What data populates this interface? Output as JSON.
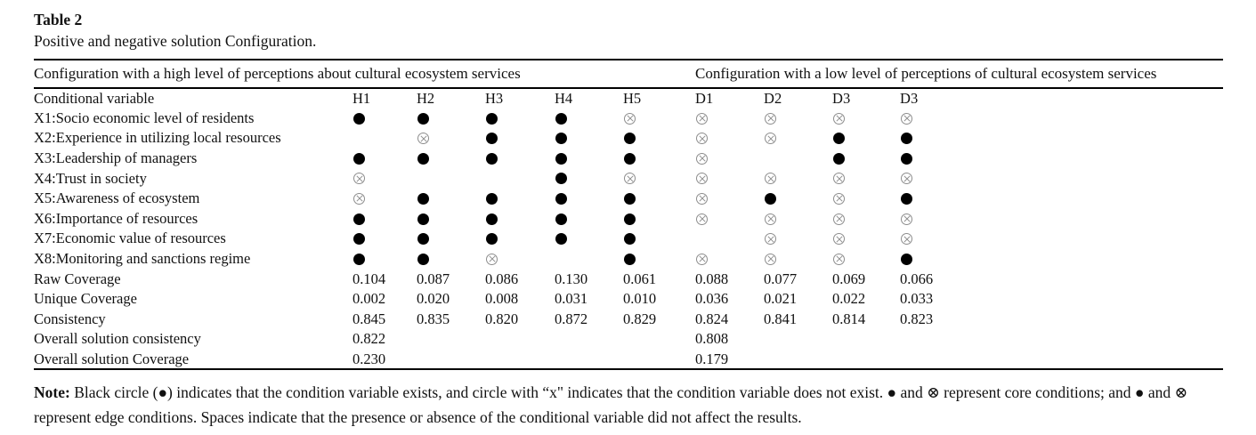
{
  "caption": {
    "label": "Table 2",
    "text": "Positive and negative solution Configuration."
  },
  "group_headers": {
    "high": "Configuration with a high level of perceptions about cultural ecosystem services",
    "low": "Configuration with a low level of perceptions of cultural ecosystem services"
  },
  "columns": [
    "Conditional variable",
    "H1",
    "H2",
    "H3",
    "H4",
    "H5",
    "D1",
    "D2",
    "D3",
    "D3"
  ],
  "symbol_legend": {
    "filled": "●",
    "crossed": "⊗"
  },
  "rows": [
    {
      "label": "X1:Socio economic level of residents",
      "cells": [
        "filled",
        "filled",
        "filled",
        "filled",
        "crossed",
        "crossed",
        "crossed",
        "crossed",
        "crossed"
      ]
    },
    {
      "label": "X2:Experience in utilizing local resources",
      "cells": [
        "",
        "crossed",
        "filled",
        "filled",
        "filled",
        "crossed",
        "crossed",
        "filled",
        "filled"
      ]
    },
    {
      "label": "X3:Leadership of managers",
      "cells": [
        "filled",
        "filled",
        "filled",
        "filled",
        "filled",
        "crossed",
        "",
        "filled",
        "filled"
      ]
    },
    {
      "label": "X4:Trust in society",
      "cells": [
        "crossed",
        "",
        "",
        "filled",
        "crossed",
        "crossed",
        "crossed",
        "crossed",
        "crossed"
      ]
    },
    {
      "label": "X5:Awareness of ecosystem",
      "cells": [
        "crossed",
        "filled",
        "filled",
        "filled",
        "filled",
        "crossed",
        "filled",
        "crossed",
        "filled"
      ]
    },
    {
      "label": "X6:Importance of resources",
      "cells": [
        "filled",
        "filled",
        "filled",
        "filled",
        "filled",
        "crossed",
        "crossed",
        "crossed",
        "crossed"
      ]
    },
    {
      "label": "X7:Economic value of resources",
      "cells": [
        "filled",
        "filled",
        "filled",
        "filled",
        "filled",
        "",
        "crossed",
        "crossed",
        "crossed"
      ]
    },
    {
      "label": "X8:Monitoring and sanctions regime",
      "cells": [
        "filled",
        "filled",
        "crossed",
        "",
        "filled",
        "crossed",
        "crossed",
        "crossed",
        "filled"
      ]
    }
  ],
  "stat_rows": [
    {
      "label": "Raw Coverage",
      "values": [
        "0.104",
        "0.087",
        "0.086",
        "0.130",
        "0.061",
        "0.088",
        "0.077",
        "0.069",
        "0.066"
      ]
    },
    {
      "label": "Unique Coverage",
      "values": [
        "0.002",
        "0.020",
        "0.008",
        "0.031",
        "0.010",
        "0.036",
        "0.021",
        "0.022",
        "0.033"
      ]
    },
    {
      "label": "Consistency",
      "values": [
        "0.845",
        "0.835",
        "0.820",
        "0.872",
        "0.829",
        "0.824",
        "0.841",
        "0.814",
        "0.823"
      ]
    },
    {
      "label": "Overall solution consistency",
      "values": [
        "0.822",
        "",
        "",
        "",
        "",
        "0.808",
        "",
        "",
        ""
      ]
    },
    {
      "label": "Overall solution Coverage",
      "values": [
        "0.230",
        "",
        "",
        "",
        "",
        "0.179",
        "",
        "",
        ""
      ]
    }
  ],
  "note": {
    "label": "Note:",
    "text": " Black circle (●) indicates that the condition variable exists, and circle with “x\" indicates that the condition variable does not exist. ● and ⊗ represent core conditions; and ● and ⊗ represent edge conditions. Spaces indicate that the presence or absence of the conditional variable did not affect the results."
  }
}
